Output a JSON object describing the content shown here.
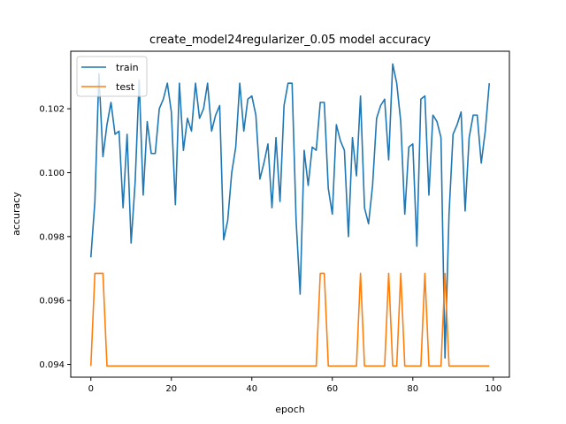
{
  "chart_data": {
    "type": "line",
    "title": "create_model24regularizer_0.05 model accuracy",
    "xlabel": "epoch",
    "ylabel": "accuracy",
    "xlim": [
      -5,
      104
    ],
    "ylim": [
      0.0936,
      0.1038
    ],
    "xticks": [
      0,
      20,
      40,
      60,
      80,
      100
    ],
    "xtick_labels": [
      "0",
      "20",
      "40",
      "60",
      "80",
      "100"
    ],
    "yticks": [
      0.094,
      0.096,
      0.098,
      0.1,
      0.102
    ],
    "ytick_labels": [
      "0.094",
      "0.096",
      "0.098",
      "0.100",
      "0.102"
    ],
    "legend_position": "upper-left",
    "grid": false,
    "series": [
      {
        "name": "train",
        "color": "#1f77b4",
        "x": [
          0,
          1,
          2,
          3,
          4,
          5,
          6,
          7,
          8,
          9,
          10,
          11,
          12,
          13,
          14,
          15,
          16,
          17,
          18,
          19,
          20,
          21,
          22,
          23,
          24,
          25,
          26,
          27,
          28,
          29,
          30,
          31,
          32,
          33,
          34,
          35,
          36,
          37,
          38,
          39,
          40,
          41,
          42,
          43,
          44,
          45,
          46,
          47,
          48,
          49,
          50,
          51,
          52,
          53,
          54,
          55,
          56,
          57,
          58,
          59,
          60,
          61,
          62,
          63,
          64,
          65,
          66,
          67,
          68,
          69,
          70,
          71,
          72,
          73,
          74,
          75,
          76,
          77,
          78,
          79,
          80,
          81,
          82,
          83,
          84,
          85,
          86,
          87,
          88,
          89,
          90,
          91,
          92,
          93,
          94,
          95,
          96,
          97,
          98,
          99
        ],
        "y": [
          0.09735,
          0.0991,
          0.1031,
          0.1005,
          0.1015,
          0.1022,
          0.1012,
          0.1013,
          0.0989,
          0.1012,
          0.0978,
          0.0997,
          0.1029,
          0.0993,
          0.1016,
          0.1006,
          0.1006,
          0.102,
          0.1023,
          0.1028,
          0.1019,
          0.099,
          0.1028,
          0.1007,
          0.1017,
          0.1013,
          0.1028,
          0.1017,
          0.102,
          0.1028,
          0.1013,
          0.1018,
          0.1021,
          0.0979,
          0.0985,
          0.1,
          0.1008,
          0.1028,
          0.1013,
          0.1023,
          0.1024,
          0.1018,
          0.0998,
          0.1003,
          0.1009,
          0.0989,
          0.1011,
          0.0991,
          0.1021,
          0.1028,
          0.1028,
          0.0985,
          0.0962,
          0.1007,
          0.0996,
          0.1008,
          0.1007,
          0.1022,
          0.1022,
          0.0995,
          0.0987,
          0.1015,
          0.101,
          0.1007,
          0.098,
          0.1011,
          0.0999,
          0.1024,
          0.0989,
          0.0984,
          0.0996,
          0.1017,
          0.1021,
          0.1023,
          0.1004,
          0.1034,
          0.1028,
          0.1016,
          0.0987,
          0.1008,
          0.1009,
          0.0977,
          0.1023,
          0.1024,
          0.0993,
          0.1018,
          0.1016,
          0.1011,
          0.0942,
          0.0987,
          0.1012,
          0.1015,
          0.1019,
          0.0988,
          0.1011,
          0.1018,
          0.1018,
          0.1003,
          0.1013,
          0.1028
        ]
      },
      {
        "name": "test",
        "color": "#ff7f0e",
        "x": [
          0,
          1,
          2,
          3,
          4,
          5,
          6,
          7,
          8,
          9,
          10,
          11,
          12,
          13,
          14,
          15,
          16,
          17,
          18,
          19,
          20,
          21,
          22,
          23,
          24,
          25,
          26,
          27,
          28,
          29,
          30,
          31,
          32,
          33,
          34,
          35,
          36,
          37,
          38,
          39,
          40,
          41,
          42,
          43,
          44,
          45,
          46,
          47,
          48,
          49,
          50,
          51,
          52,
          53,
          54,
          55,
          56,
          57,
          58,
          59,
          60,
          61,
          62,
          63,
          64,
          65,
          66,
          67,
          68,
          69,
          70,
          71,
          72,
          73,
          74,
          75,
          76,
          77,
          78,
          79,
          80,
          81,
          82,
          83,
          84,
          85,
          86,
          87,
          88,
          89,
          90,
          91,
          92,
          93,
          94,
          95,
          96,
          97,
          98,
          99
        ],
        "y": [
          0.09395,
          0.09685,
          0.09685,
          0.09685,
          0.09395,
          0.09395,
          0.09395,
          0.09395,
          0.09395,
          0.09395,
          0.09395,
          0.09395,
          0.09395,
          0.09395,
          0.09395,
          0.09395,
          0.09395,
          0.09395,
          0.09395,
          0.09395,
          0.09395,
          0.09395,
          0.09395,
          0.09395,
          0.09395,
          0.09395,
          0.09395,
          0.09395,
          0.09395,
          0.09395,
          0.09395,
          0.09395,
          0.09395,
          0.09395,
          0.09395,
          0.09395,
          0.09395,
          0.09395,
          0.09395,
          0.09395,
          0.09395,
          0.09395,
          0.09395,
          0.09395,
          0.09395,
          0.09395,
          0.09395,
          0.09395,
          0.09395,
          0.09395,
          0.09395,
          0.09395,
          0.09395,
          0.09395,
          0.09395,
          0.09395,
          0.09395,
          0.09685,
          0.09685,
          0.09395,
          0.09395,
          0.09395,
          0.09395,
          0.09395,
          0.09395,
          0.09395,
          0.09395,
          0.09685,
          0.09395,
          0.09395,
          0.09395,
          0.09395,
          0.09395,
          0.09395,
          0.09685,
          0.09395,
          0.09395,
          0.09685,
          0.09395,
          0.09395,
          0.09395,
          0.09395,
          0.09395,
          0.09685,
          0.09395,
          0.09395,
          0.09395,
          0.09395,
          0.09685,
          0.09395,
          0.09395,
          0.09395,
          0.09395,
          0.09395,
          0.09395,
          0.09395,
          0.09395,
          0.09395,
          0.09395,
          0.09395
        ]
      }
    ]
  }
}
